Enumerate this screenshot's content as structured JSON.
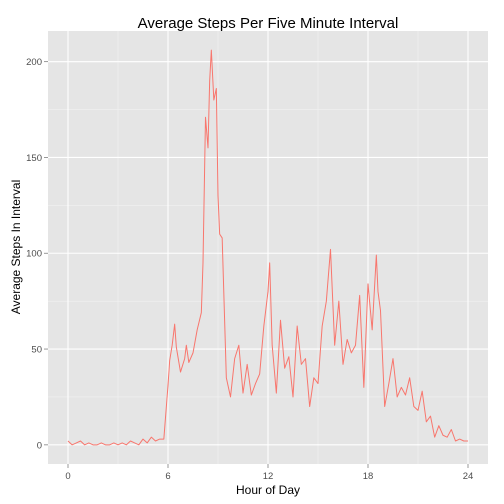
{
  "chart_data": {
    "type": "line",
    "title": "Average Steps Per Five Minute Interval",
    "xlabel": "Hour of Day",
    "ylabel": "Average Steps In Interval",
    "xlim": [
      -1.2,
      25.2
    ],
    "ylim": [
      -10,
      216
    ],
    "x_ticks": [
      0,
      6,
      12,
      18,
      24
    ],
    "x_tick_labels": [
      "0",
      "6",
      "12",
      "18",
      "24"
    ],
    "y_ticks": [
      0,
      50,
      100,
      150,
      200
    ],
    "y_tick_labels": [
      "0",
      "50",
      "100",
      "150",
      "200"
    ],
    "grid": true,
    "background": "#e5e5e5",
    "series": [
      {
        "color": "#f8766d",
        "x": [
          0,
          0.25,
          0.5,
          0.75,
          1,
          1.25,
          1.5,
          1.75,
          2,
          2.25,
          2.5,
          2.75,
          3,
          3.25,
          3.5,
          3.75,
          4,
          4.25,
          4.5,
          4.75,
          5,
          5.25,
          5.5,
          5.75,
          6,
          6.1,
          6.25,
          6.4,
          6.5,
          6.75,
          7,
          7.1,
          7.25,
          7.5,
          7.75,
          8,
          8.1,
          8.25,
          8.4,
          8.5,
          8.6,
          8.75,
          8.9,
          9,
          9.1,
          9.25,
          9.5,
          9.75,
          10,
          10.25,
          10.5,
          10.75,
          11,
          11.25,
          11.5,
          11.75,
          12,
          12.1,
          12.25,
          12.5,
          12.75,
          13,
          13.25,
          13.5,
          13.75,
          14,
          14.25,
          14.5,
          14.75,
          15,
          15.25,
          15.5,
          15.75,
          16,
          16.25,
          16.5,
          16.75,
          17,
          17.25,
          17.5,
          17.75,
          18,
          18.25,
          18.5,
          18.6,
          18.75,
          19,
          19.25,
          19.5,
          19.75,
          20,
          20.25,
          20.5,
          20.75,
          21,
          21.25,
          21.5,
          21.75,
          22,
          22.25,
          22.5,
          22.75,
          23,
          23.25,
          23.5,
          23.75,
          24
        ],
        "y": [
          2,
          0,
          1,
          2,
          0,
          1,
          0,
          0,
          1,
          0,
          0,
          1,
          0,
          1,
          0,
          2,
          1,
          0,
          3,
          1,
          4,
          2,
          3,
          3,
          31,
          44,
          52,
          63,
          51,
          38,
          45,
          52,
          43,
          48,
          60,
          69,
          95,
          171,
          155,
          190,
          206,
          180,
          186,
          130,
          110,
          108,
          35,
          25,
          45,
          52,
          27,
          42,
          26,
          32,
          37,
          62,
          80,
          95,
          52,
          27,
          65,
          40,
          46,
          25,
          62,
          42,
          45,
          20,
          35,
          32,
          62,
          75,
          102,
          52,
          75,
          42,
          55,
          48,
          52,
          78,
          30,
          84,
          60,
          99,
          80,
          70,
          20,
          32,
          45,
          25,
          30,
          26,
          35,
          20,
          18,
          28,
          12,
          15,
          4,
          10,
          5,
          4,
          8,
          2,
          3,
          2,
          2
        ]
      }
    ]
  }
}
